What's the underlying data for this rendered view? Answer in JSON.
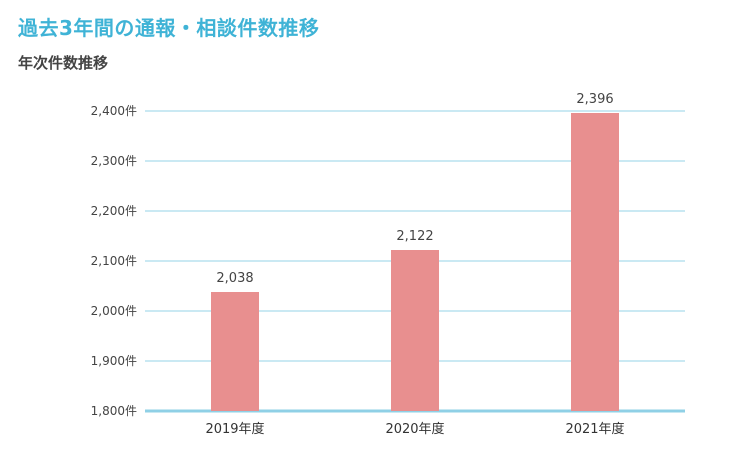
{
  "header": {
    "title": "過去3年間の通報・相談件数推移",
    "subtitle": "年次件数推移"
  },
  "colors": {
    "title": "#3fb3d6",
    "bar": "#e88f8f",
    "grid": "#b9e2ef",
    "baseline": "#8fd0e6"
  },
  "chart_data": {
    "type": "bar",
    "title": "年次件数推移",
    "categories": [
      "2019年度",
      "2020年度",
      "2021年度"
    ],
    "values": [
      2038,
      2122,
      2396
    ],
    "data_labels": [
      "2,038",
      "2,122",
      "2,396"
    ],
    "ylim": [
      1800,
      2400
    ],
    "yticks": [
      1800,
      1900,
      2000,
      2100,
      2200,
      2300,
      2400
    ],
    "ytick_labels": [
      "1,800件",
      "1,900件",
      "2,000件",
      "2,100件",
      "2,200件",
      "2,300件",
      "2,400件"
    ],
    "grid": true,
    "legend": "none"
  }
}
